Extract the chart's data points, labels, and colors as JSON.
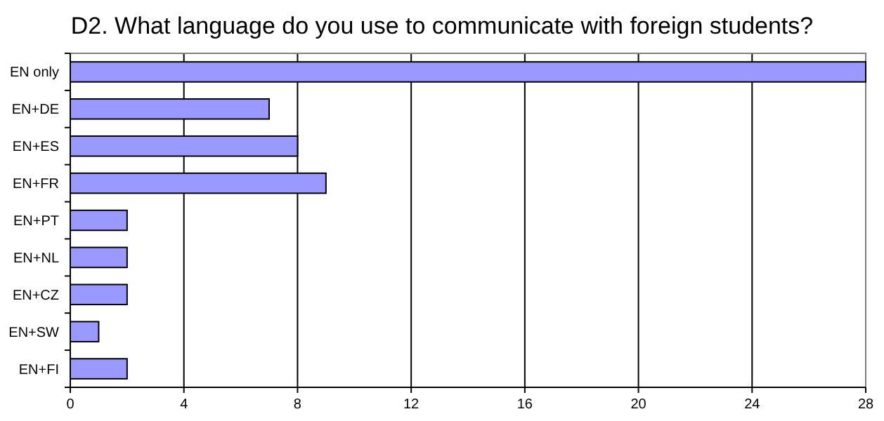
{
  "chart_data": {
    "type": "bar",
    "orientation": "horizontal",
    "title": "D2. What language do you use to communicate with foreign students?",
    "categories": [
      "EN only",
      "EN+DE",
      "EN+ES",
      "EN+FR",
      "EN+PT",
      "EN+NL",
      "EN+CZ",
      "EN+SW",
      "EN+FI"
    ],
    "values": [
      28,
      7,
      8,
      9,
      2,
      2,
      2,
      1,
      2
    ],
    "color": "#9999ff",
    "xlim": [
      0,
      28
    ],
    "xticks": [
      0,
      4,
      8,
      12,
      16,
      20,
      24,
      28
    ],
    "grid": "x"
  }
}
